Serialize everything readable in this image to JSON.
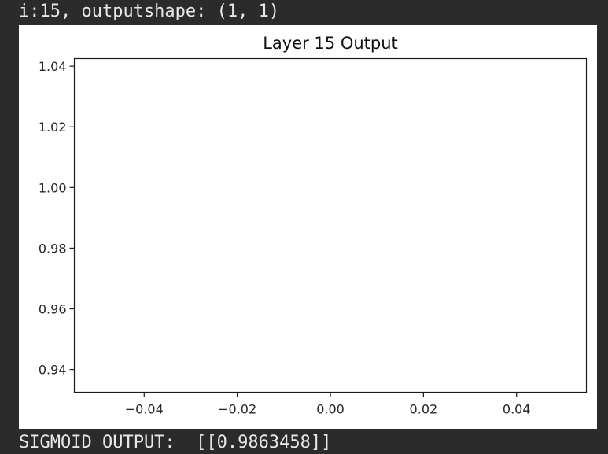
{
  "console": {
    "header_line": "i:15, outputshape: (1, 1)",
    "footer_line": "SIGMOID OUTPUT:  [[0.9863458]]"
  },
  "chart_data": {
    "type": "line",
    "title": "Layer 15 Output",
    "xlabel": "",
    "ylabel": "",
    "xlim": [
      -0.055,
      0.055
    ],
    "ylim": [
      0.9325,
      1.0425
    ],
    "x_ticks": [
      -0.04,
      -0.02,
      0.0,
      0.02,
      0.04
    ],
    "x_tick_labels": [
      "−0.04",
      "−0.02",
      "0.00",
      "0.02",
      "0.04"
    ],
    "y_ticks": [
      0.94,
      0.96,
      0.98,
      1.0,
      1.02,
      1.04
    ],
    "y_tick_labels": [
      "0.94",
      "0.96",
      "0.98",
      "1.00",
      "1.02",
      "1.04"
    ],
    "series": [],
    "grid": false,
    "legend": "none"
  }
}
